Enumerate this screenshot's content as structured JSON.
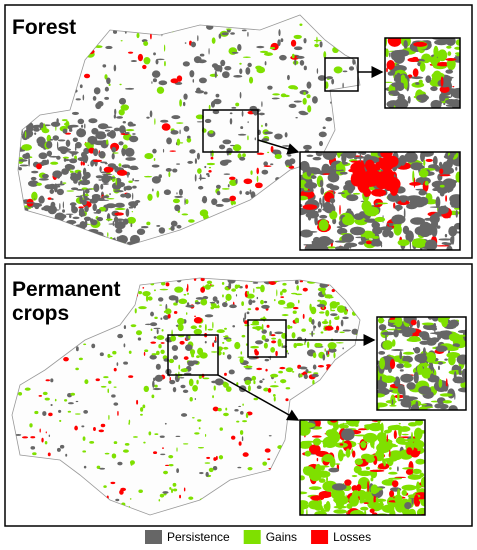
{
  "panels": [
    {
      "title_lines": [
        "Forest"
      ]
    },
    {
      "title_lines": [
        "Permanent",
        "crops"
      ]
    }
  ],
  "legend": [
    {
      "label": "Persistence",
      "color": "#666666"
    },
    {
      "label": "Gains",
      "color": "#7fe000"
    },
    {
      "label": "Losses",
      "color": "#ff0000"
    }
  ]
}
